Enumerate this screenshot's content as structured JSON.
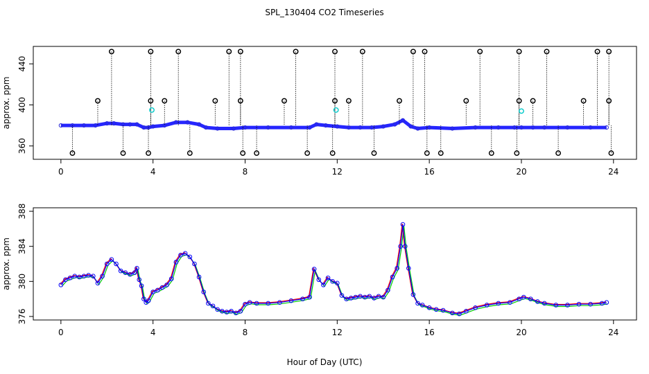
{
  "figure": {
    "title": "SPL_130404  CO2 Timeseries",
    "xlabel": "Hour of Day (UTC)"
  },
  "colors": {
    "main_series": "#0000ff",
    "outlier_marker": "#000000",
    "flag_marker": "#00c8c8",
    "series_1": "#ff0000",
    "series_2": "#00cc00",
    "series_3": "#0000ff",
    "series_point": "#0000ff"
  },
  "chart_data": [
    {
      "type": "scatter",
      "name": "top-panel",
      "title": "SPL_130404  CO2 Timeseries",
      "xlabel": "",
      "ylabel": "approx. ppm",
      "xlim": [
        -1.2,
        25.0
      ],
      "ylim": [
        347,
        457
      ],
      "xticks": [
        "0",
        "4",
        "8",
        "12",
        "16",
        "20",
        "24"
      ],
      "yticks": [
        "360",
        "400",
        "440"
      ],
      "main_series": [
        [
          0.0,
          380
        ],
        [
          0.5,
          380
        ],
        [
          1.0,
          380
        ],
        [
          1.5,
          380
        ],
        [
          2.0,
          382
        ],
        [
          2.3,
          382
        ],
        [
          2.7,
          381
        ],
        [
          3.0,
          381
        ],
        [
          3.3,
          381
        ],
        [
          3.6,
          378
        ],
        [
          3.8,
          378
        ],
        [
          4.0,
          379
        ],
        [
          4.5,
          380
        ],
        [
          5.0,
          383
        ],
        [
          5.5,
          383
        ],
        [
          6.0,
          381
        ],
        [
          6.3,
          378
        ],
        [
          6.8,
          377
        ],
        [
          7.5,
          377
        ],
        [
          8.0,
          378
        ],
        [
          9.0,
          378
        ],
        [
          10.0,
          378
        ],
        [
          10.8,
          378
        ],
        [
          11.1,
          381
        ],
        [
          11.5,
          380
        ],
        [
          12.0,
          379
        ],
        [
          12.5,
          378
        ],
        [
          13.0,
          378
        ],
        [
          13.5,
          378
        ],
        [
          14.0,
          379
        ],
        [
          14.5,
          381
        ],
        [
          14.85,
          385
        ],
        [
          15.2,
          379
        ],
        [
          15.5,
          377
        ],
        [
          16.0,
          378
        ],
        [
          17.0,
          377
        ],
        [
          18.0,
          378
        ],
        [
          19.0,
          378
        ],
        [
          19.7,
          378
        ],
        [
          20.0,
          378
        ],
        [
          20.5,
          378
        ],
        [
          21.0,
          378
        ],
        [
          22.0,
          378
        ],
        [
          23.0,
          378
        ],
        [
          23.7,
          378
        ]
      ],
      "high_outliers": [
        [
          2.2,
          452
        ],
        [
          3.9,
          452
        ],
        [
          5.1,
          452
        ],
        [
          7.3,
          452
        ],
        [
          7.8,
          452
        ],
        [
          10.2,
          452
        ],
        [
          11.9,
          452
        ],
        [
          13.1,
          452
        ],
        [
          15.3,
          452
        ],
        [
          15.8,
          452
        ],
        [
          18.2,
          452
        ],
        [
          19.9,
          452
        ],
        [
          21.1,
          452
        ],
        [
          23.3,
          452
        ],
        [
          23.8,
          452
        ]
      ],
      "mid_outliers": [
        [
          1.6,
          404
        ],
        [
          3.9,
          404
        ],
        [
          4.5,
          404
        ],
        [
          6.7,
          404
        ],
        [
          7.8,
          404
        ],
        [
          9.7,
          404
        ],
        [
          11.9,
          404
        ],
        [
          12.5,
          404
        ],
        [
          14.7,
          404
        ],
        [
          17.6,
          404
        ],
        [
          19.9,
          404
        ],
        [
          20.5,
          404
        ],
        [
          22.7,
          404
        ],
        [
          23.8,
          404
        ]
      ],
      "low_outliers": [
        [
          0.5,
          353
        ],
        [
          2.7,
          353
        ],
        [
          3.8,
          353
        ],
        [
          5.6,
          353
        ],
        [
          7.9,
          353
        ],
        [
          8.5,
          353
        ],
        [
          10.7,
          353
        ],
        [
          11.8,
          353
        ],
        [
          13.6,
          353
        ],
        [
          15.9,
          353
        ],
        [
          16.5,
          353
        ],
        [
          18.7,
          353
        ],
        [
          19.8,
          353
        ],
        [
          21.6,
          353
        ],
        [
          23.9,
          353
        ]
      ],
      "flagged_points": [
        [
          3.95,
          395
        ],
        [
          11.95,
          395
        ],
        [
          20.0,
          394
        ]
      ]
    },
    {
      "type": "line",
      "name": "bottom-panel",
      "xlabel": "Hour of Day (UTC)",
      "ylabel": "approx. ppm",
      "xlim": [
        -1.2,
        25.0
      ],
      "ylim": [
        375.6,
        388.4
      ],
      "xticks": [
        "0",
        "4",
        "8",
        "12",
        "16",
        "20",
        "24"
      ],
      "yticks": [
        "376",
        "380",
        "384",
        "388"
      ],
      "series": [
        {
          "name": "CO2",
          "x": [
            0.0,
            0.2,
            0.4,
            0.6,
            0.8,
            1.0,
            1.2,
            1.4,
            1.6,
            1.8,
            2.0,
            2.2,
            2.4,
            2.6,
            2.8,
            3.0,
            3.2,
            3.3,
            3.4,
            3.5,
            3.6,
            3.7,
            3.8,
            4.0,
            4.2,
            4.4,
            4.6,
            4.8,
            5.0,
            5.2,
            5.4,
            5.6,
            5.8,
            6.0,
            6.2,
            6.4,
            6.6,
            6.8,
            7.0,
            7.2,
            7.4,
            7.6,
            7.8,
            8.0,
            8.2,
            8.5,
            9.0,
            9.5,
            10.0,
            10.5,
            10.8,
            11.0,
            11.2,
            11.4,
            11.6,
            11.8,
            12.0,
            12.2,
            12.4,
            12.6,
            12.8,
            13.0,
            13.2,
            13.4,
            13.6,
            13.8,
            14.0,
            14.2,
            14.4,
            14.6,
            14.75,
            14.85,
            14.95,
            15.1,
            15.3,
            15.5,
            15.7,
            16.0,
            16.3,
            16.6,
            17.0,
            17.3,
            17.6,
            18.0,
            18.5,
            19.0,
            19.5,
            19.9,
            20.1,
            20.4,
            20.7,
            21.0,
            21.5,
            22.0,
            22.5,
            23.0,
            23.5,
            23.7
          ],
          "y": [
            379.6,
            380.2,
            380.4,
            380.6,
            380.5,
            380.6,
            380.7,
            380.6,
            379.8,
            380.6,
            382.0,
            382.5,
            382.0,
            381.2,
            381.0,
            380.8,
            381.0,
            381.5,
            380.2,
            379.5,
            378.0,
            377.6,
            377.8,
            378.8,
            379.0,
            379.3,
            379.6,
            380.3,
            382.2,
            383.0,
            383.2,
            382.8,
            382.0,
            380.5,
            378.8,
            377.5,
            377.2,
            376.8,
            376.6,
            376.5,
            376.6,
            376.4,
            376.6,
            377.4,
            377.6,
            377.5,
            377.5,
            377.6,
            377.8,
            378.0,
            378.2,
            381.4,
            380.2,
            379.6,
            380.4,
            380.0,
            379.8,
            378.4,
            378.0,
            378.1,
            378.2,
            378.3,
            378.2,
            378.3,
            378.1,
            378.3,
            378.2,
            379.0,
            380.5,
            381.5,
            384.0,
            386.5,
            384.0,
            381.5,
            378.5,
            377.5,
            377.3,
            377.0,
            376.8,
            376.7,
            376.4,
            376.3,
            376.6,
            377.0,
            377.3,
            377.5,
            377.6,
            378.0,
            378.2,
            378.0,
            377.7,
            377.5,
            377.3,
            377.3,
            377.4,
            377.4,
            377.5,
            377.6
          ]
        }
      ]
    }
  ]
}
